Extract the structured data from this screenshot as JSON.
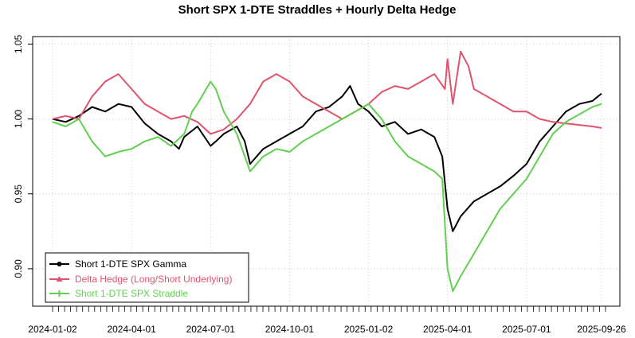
{
  "chart_data": {
    "type": "line",
    "title": "Short SPX 1-DTE Straddles + Hourly Delta Hedge",
    "xlabel": "",
    "ylabel": "",
    "ylim": [
      0.875,
      1.055
    ],
    "y_ticks": [
      0.9,
      0.95,
      1.0,
      1.05
    ],
    "y_tick_labels": [
      "0.90",
      "0.95",
      "1.00",
      "1.05"
    ],
    "x_range": [
      0,
      21
    ],
    "x_ticks": [
      0,
      3,
      6,
      9,
      12,
      15,
      18,
      20.85
    ],
    "x_tick_labels": [
      "2024-01-02",
      "2024-04-01",
      "2024-07-01",
      "2024-10-01",
      "2025-01-02",
      "2025-04-01",
      "2025-07-01",
      "2025-09-26"
    ],
    "grid": true,
    "legend_position": "bottom-left",
    "series": [
      {
        "name": "Short 1-DTE SPX Gamma",
        "color": "#000000",
        "marker": "circle",
        "x": [
          0,
          0.5,
          1,
          1.5,
          2,
          2.5,
          3,
          3.5,
          4,
          4.5,
          4.8,
          5,
          5.5,
          6,
          6.2,
          6.5,
          7,
          7.3,
          7.5,
          8,
          8.5,
          9,
          9.5,
          10,
          10.5,
          11,
          11.3,
          11.6,
          12,
          12.5,
          13,
          13.5,
          14,
          14.5,
          14.8,
          15,
          15.2,
          15.5,
          16,
          16.5,
          17,
          17.5,
          18,
          18.5,
          19,
          19.5,
          20,
          20.5,
          20.85
        ],
        "y": [
          1.0,
          0.998,
          1.002,
          1.008,
          1.005,
          1.01,
          1.008,
          0.997,
          0.99,
          0.985,
          0.98,
          0.988,
          0.995,
          0.982,
          0.985,
          0.99,
          0.995,
          0.985,
          0.97,
          0.98,
          0.985,
          0.99,
          0.995,
          1.005,
          1.008,
          1.015,
          1.022,
          1.01,
          1.005,
          0.995,
          0.998,
          0.99,
          0.993,
          0.988,
          0.975,
          0.94,
          0.925,
          0.935,
          0.945,
          0.95,
          0.955,
          0.962,
          0.97,
          0.985,
          0.995,
          1.005,
          1.01,
          1.012,
          1.017
        ]
      },
      {
        "name": "Delta Hedge (Long/Short Underlying)",
        "color": "#DF536B",
        "marker": "triangle",
        "x": [
          0,
          0.5,
          1,
          1.5,
          2,
          2.5,
          3,
          3.5,
          4,
          4.5,
          5,
          5.5,
          6,
          6.5,
          7,
          7.5,
          8,
          8.5,
          9,
          9.5,
          10,
          10.5,
          11,
          11.5,
          12,
          12.5,
          13,
          13.5,
          14,
          14.5,
          14.9,
          15,
          15.2,
          15.5,
          15.8,
          16,
          16.5,
          17,
          17.5,
          18,
          18.5,
          19,
          19.5,
          20,
          20.5,
          20.85
        ],
        "y": [
          1.0,
          1.002,
          1.0,
          1.015,
          1.025,
          1.03,
          1.02,
          1.01,
          1.005,
          1.0,
          1.002,
          0.998,
          0.99,
          0.993,
          1.0,
          1.01,
          1.025,
          1.03,
          1.025,
          1.015,
          1.01,
          1.005,
          1.0,
          1.005,
          1.01,
          1.018,
          1.022,
          1.02,
          1.025,
          1.03,
          1.02,
          1.04,
          1.01,
          1.045,
          1.035,
          1.02,
          1.015,
          1.01,
          1.005,
          1.005,
          1.0,
          0.998,
          0.997,
          0.996,
          0.995,
          0.994
        ]
      },
      {
        "name": "Short 1-DTE SPX Straddle",
        "color": "#61D04F",
        "marker": "plus",
        "x": [
          0,
          0.5,
          1,
          1.5,
          2,
          2.5,
          3,
          3.5,
          4,
          4.5,
          5,
          5.3,
          5.5,
          6,
          6.2,
          6.5,
          7,
          7.3,
          7.5,
          8,
          8.5,
          9,
          9.5,
          10,
          10.5,
          11,
          11.5,
          12,
          12.5,
          13,
          13.5,
          14,
          14.5,
          14.8,
          15,
          15.2,
          15.5,
          16,
          16.5,
          17,
          17.5,
          18,
          18.5,
          19,
          19.5,
          20,
          20.5,
          20.85
        ],
        "y": [
          0.998,
          0.995,
          1.0,
          0.985,
          0.975,
          0.978,
          0.98,
          0.985,
          0.988,
          0.982,
          0.99,
          1.005,
          1.01,
          1.025,
          1.02,
          1.005,
          0.99,
          0.975,
          0.965,
          0.975,
          0.98,
          0.978,
          0.985,
          0.99,
          0.995,
          1.0,
          1.005,
          1.01,
          1.0,
          0.985,
          0.975,
          0.97,
          0.965,
          0.96,
          0.9,
          0.885,
          0.895,
          0.91,
          0.925,
          0.94,
          0.95,
          0.96,
          0.975,
          0.99,
          0.998,
          1.003,
          1.008,
          1.01
        ]
      }
    ]
  }
}
